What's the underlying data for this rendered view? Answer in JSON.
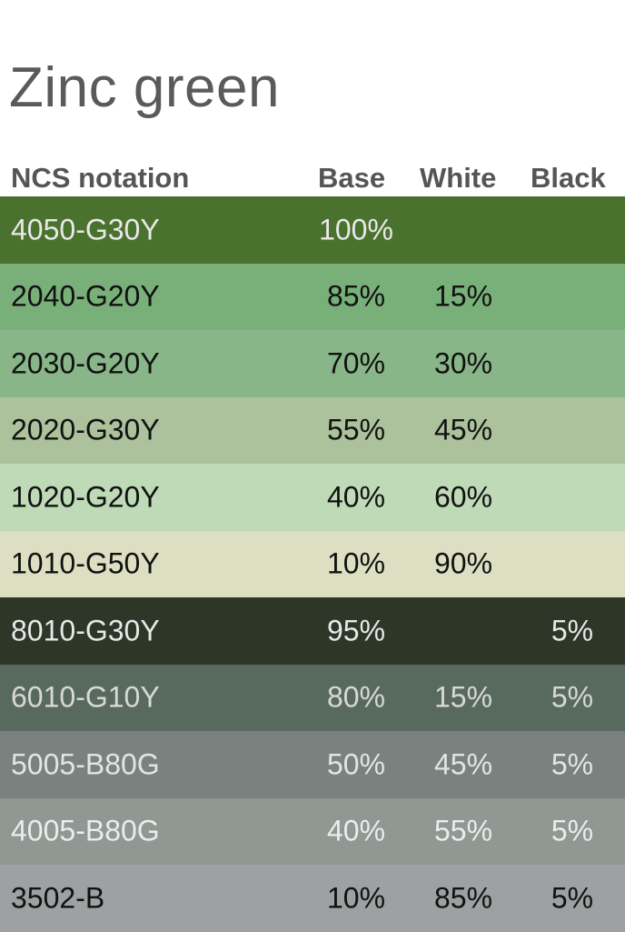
{
  "title": "Zinc green",
  "headers": {
    "ncs": "NCS notation",
    "base": "Base",
    "white": "White",
    "black": "Black"
  },
  "rows": [
    {
      "ncs": "4050-G30Y",
      "base": "100%",
      "white": "",
      "black": "",
      "bg": "#4a722e",
      "fg": "#e8e8e8"
    },
    {
      "ncs": "2040-G20Y",
      "base": "85%",
      "white": "15%",
      "black": "",
      "bg": "#79b07a",
      "fg": "#111111"
    },
    {
      "ncs": "2030-G20Y",
      "base": "70%",
      "white": "30%",
      "black": "",
      "bg": "#89b689",
      "fg": "#111111"
    },
    {
      "ncs": "2020-G30Y",
      "base": "55%",
      "white": "45%",
      "black": "",
      "bg": "#abc29c",
      "fg": "#111111"
    },
    {
      "ncs": "1020-G20Y",
      "base": "40%",
      "white": "60%",
      "black": "",
      "bg": "#bedab7",
      "fg": "#111111"
    },
    {
      "ncs": "1010-G50Y",
      "base": "10%",
      "white": "90%",
      "black": "",
      "bg": "#dddfc3",
      "fg": "#111111"
    },
    {
      "ncs": "8010-G30Y",
      "base": "95%",
      "white": "",
      "black": "5%",
      "bg": "#2d3728",
      "fg": "#e8e8e8"
    },
    {
      "ncs": "6010-G10Y",
      "base": "80%",
      "white": "15%",
      "black": "5%",
      "bg": "#586a5d",
      "fg": "#d8d8d8"
    },
    {
      "ncs": "5005-B80G",
      "base": "50%",
      "white": "45%",
      "black": "5%",
      "bg": "#7a8280",
      "fg": "#e4e4e4"
    },
    {
      "ncs": "4005-B80G",
      "base": "40%",
      "white": "55%",
      "black": "5%",
      "bg": "#8f9893",
      "fg": "#ececec"
    },
    {
      "ncs": "3502-B",
      "base": "10%",
      "white": "85%",
      "black": "5%",
      "bg": "#9da1a2",
      "fg": "#111111"
    }
  ]
}
